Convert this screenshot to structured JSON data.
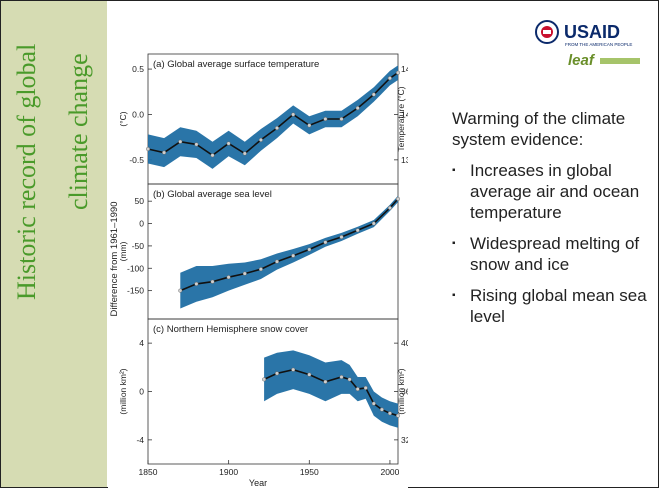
{
  "slide": {
    "title_line1": "Historic record of global",
    "title_line2": "climate change",
    "body_lead": "Warming of the climate system evidence:",
    "bullets": [
      "Increases in global average air and ocean temperature",
      "Widespread melting of snow and ice",
      "Rising global mean sea level"
    ],
    "logo": {
      "brand": "USAID",
      "tagline": "FROM THE AMERICAN PEOPLE",
      "secondary": "leaf"
    }
  },
  "colors": {
    "band": "#1f6ea3",
    "title_green": "#4a9a2a",
    "sidebar": "#d6dcb3",
    "usaid_blue": "#0b2a6b",
    "usaid_red": "#c8102e"
  },
  "chart_data": {
    "type": "line",
    "shared_ylabel": "Difference from 1961–1990",
    "xlabel": "Year",
    "x_ticks": [
      "1850",
      "1900",
      "1950",
      "2000"
    ],
    "xlim": [
      1850,
      2005
    ],
    "panels": [
      {
        "title": "(a) Global average surface temperature",
        "ylabel_left": "(°C)",
        "ylabel_right": "Temperature (°C)",
        "ylim": [
          -0.7,
          0.6
        ],
        "y_ticks": [
          "0.5",
          "0.0",
          "-0.5"
        ],
        "right_ticks": [
          "14.5",
          "14.0",
          "13.5"
        ],
        "series": [
          {
            "x": [
              1850,
              1860,
              1870,
              1880,
              1890,
              1900,
              1910,
              1920,
              1930,
              1940,
              1950,
              1960,
              1970,
              1980,
              1990,
              2000,
              2005
            ],
            "y": [
              -0.38,
              -0.42,
              -0.3,
              -0.33,
              -0.45,
              -0.32,
              -0.43,
              -0.28,
              -0.15,
              0.0,
              -0.12,
              -0.05,
              -0.05,
              0.07,
              0.22,
              0.4,
              0.46
            ],
            "upper": [
              -0.22,
              -0.26,
              -0.14,
              -0.18,
              -0.3,
              -0.18,
              -0.3,
              -0.16,
              -0.04,
              0.1,
              -0.02,
              0.04,
              0.04,
              0.16,
              0.3,
              0.48,
              0.54
            ],
            "lower": [
              -0.54,
              -0.58,
              -0.46,
              -0.48,
              -0.6,
              -0.46,
              -0.56,
              -0.4,
              -0.26,
              -0.1,
              -0.22,
              -0.14,
              -0.14,
              -0.02,
              0.14,
              0.32,
              0.38
            ]
          }
        ]
      },
      {
        "title": "(b) Global average sea level",
        "ylabel_left": "(mm)",
        "ylim": [
          -200,
          75
        ],
        "y_ticks": [
          "50",
          "0",
          "-50",
          "-100",
          "-150"
        ],
        "series": [
          {
            "x": [
              1870,
              1880,
              1890,
              1900,
              1910,
              1920,
              1930,
              1940,
              1950,
              1960,
              1970,
              1980,
              1990,
              2000,
              2005
            ],
            "y": [
              -150,
              -135,
              -130,
              -120,
              -112,
              -102,
              -85,
              -72,
              -58,
              -42,
              -30,
              -15,
              0,
              35,
              55
            ],
            "upper": [
              -110,
              -95,
              -95,
              -90,
              -87,
              -80,
              -67,
              -57,
              -46,
              -32,
              -21,
              -7,
              8,
              42,
              62
            ],
            "lower": [
              -190,
              -175,
              -165,
              -150,
              -137,
              -124,
              -103,
              -87,
              -70,
              -52,
              -39,
              -23,
              -8,
              28,
              48
            ]
          }
        ]
      },
      {
        "title": "(c) Northern Hemisphere snow cover",
        "ylabel_left": "(million km²)",
        "ylabel_right": "(million km²)",
        "ylim": [
          -5.5,
          5.5
        ],
        "y_ticks": [
          "4",
          "0",
          "-4"
        ],
        "right_ticks": [
          "40",
          "36",
          "32"
        ],
        "series": [
          {
            "x": [
              1922,
              1930,
              1940,
              1950,
              1960,
              1970,
              1975,
              1980,
              1985,
              1990,
              1995,
              2000,
              2005
            ],
            "y": [
              1.0,
              1.5,
              1.8,
              1.4,
              0.8,
              1.2,
              1.0,
              0.2,
              0.3,
              -1.0,
              -1.5,
              -1.8,
              -2.0
            ],
            "upper": [
              2.8,
              3.2,
              3.4,
              3.0,
              2.4,
              2.6,
              2.2,
              1.2,
              1.2,
              0.0,
              -0.5,
              -0.8,
              -1.0
            ],
            "lower": [
              -0.8,
              -0.2,
              0.2,
              -0.2,
              -0.8,
              -0.2,
              -0.2,
              -0.8,
              -0.6,
              -2.0,
              -2.5,
              -2.8,
              -3.0
            ]
          }
        ]
      }
    ]
  }
}
